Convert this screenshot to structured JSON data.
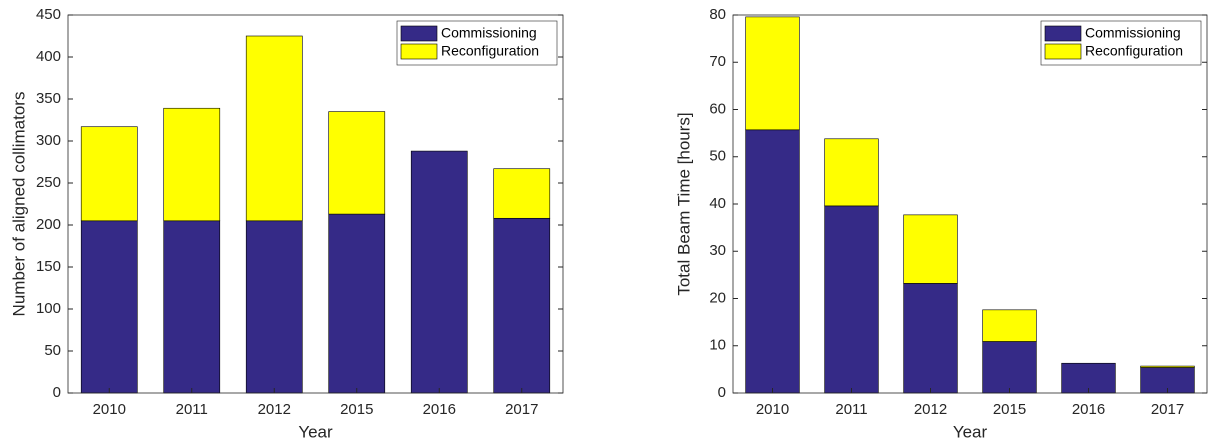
{
  "chart_data": [
    {
      "type": "bar",
      "stacked": true,
      "x_label": "Year",
      "y_label": "Number of aligned collimators",
      "categories": [
        "2010",
        "2011",
        "2012",
        "2015",
        "2016",
        "2017"
      ],
      "series": [
        {
          "name": "Commissioning",
          "color": "#352a87",
          "values": [
            205,
            205,
            205,
            213,
            288,
            208
          ]
        },
        {
          "name": "Reconfiguration",
          "color": "#ffff00",
          "values": [
            112,
            134,
            220,
            122,
            0,
            59
          ]
        }
      ],
      "ylim": [
        0,
        450
      ],
      "yticks": [
        0,
        50,
        100,
        150,
        200,
        250,
        300,
        350,
        400,
        450
      ],
      "legend": "upper right"
    },
    {
      "type": "bar",
      "stacked": true,
      "x_label": "Year",
      "y_label": "Total Beam Time [hours]",
      "categories": [
        "2010",
        "2011",
        "2012",
        "2015",
        "2016",
        "2017"
      ],
      "series": [
        {
          "name": "Commissioning",
          "color": "#352a87",
          "values": [
            55.7,
            39.6,
            23.2,
            10.9,
            6.3,
            5.4
          ]
        },
        {
          "name": "Reconfiguration",
          "color": "#ffff00",
          "values": [
            23.9,
            14.2,
            14.5,
            6.7,
            0,
            0.3
          ]
        }
      ],
      "ylim": [
        0,
        80
      ],
      "yticks": [
        0,
        10,
        20,
        30,
        40,
        50,
        60,
        70,
        80
      ],
      "legend": "upper right"
    }
  ]
}
